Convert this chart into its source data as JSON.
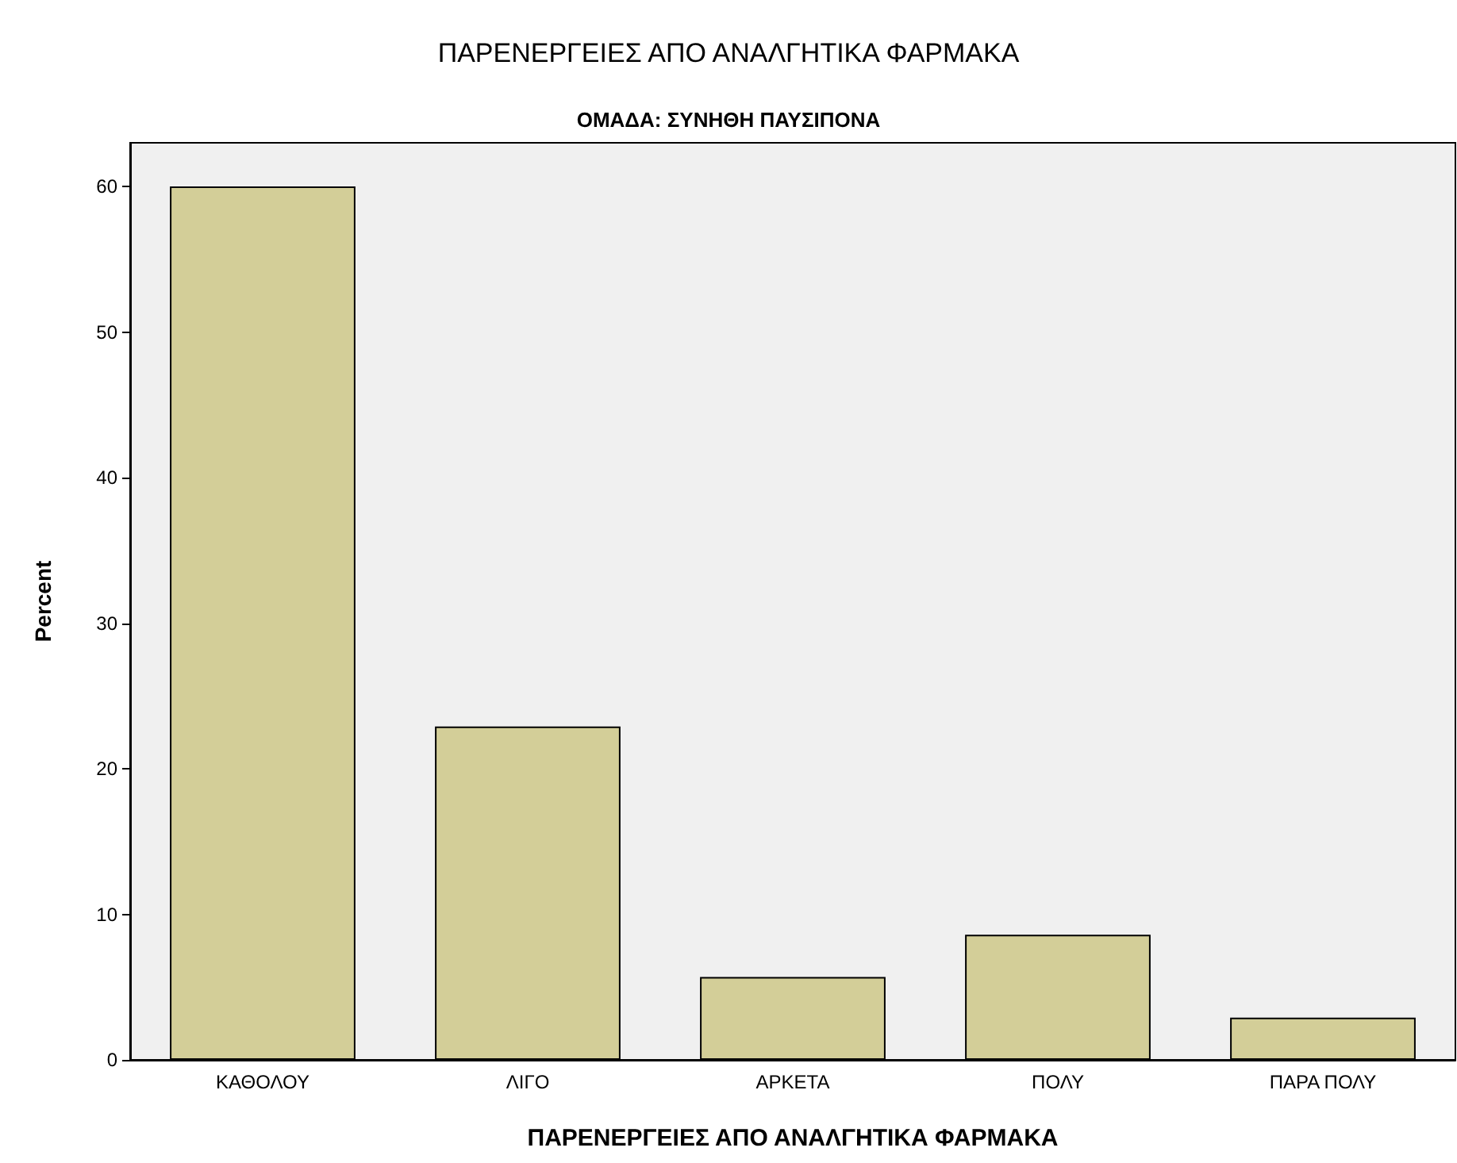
{
  "chart_data": {
    "type": "bar",
    "title": "ΠΑΡΕΝΕΡΓΕΙΕΣ ΑΠΟ ΑΝΑΛΓΗΤΙΚΑ ΦΑΡΜΑΚΑ",
    "subtitle": "ΟΜΑΔΑ: ΣΥΝΗΘΗ ΠΑΥΣΙΠΟΝΑ",
    "xlabel": "ΠΑΡΕΝΕΡΓΕΙΕΣ ΑΠΟ ΑΝΑΛΓΗΤΙΚΑ ΦΑΡΜΑΚΑ",
    "ylabel": "Percent",
    "categories": [
      "ΚΑΘΟΛΟΥ",
      "ΛΙΓΟ",
      "ΑΡΚΕΤΑ",
      "ΠΟΛΥ",
      "ΠΑΡΑ ΠΟΛΥ"
    ],
    "values": [
      60,
      22.9,
      5.7,
      8.6,
      2.9
    ],
    "color": "#d3ce98",
    "ylim": [
      0,
      63
    ],
    "yticks": [
      0,
      10,
      20,
      30,
      40,
      50,
      60
    ],
    "grid": false
  }
}
